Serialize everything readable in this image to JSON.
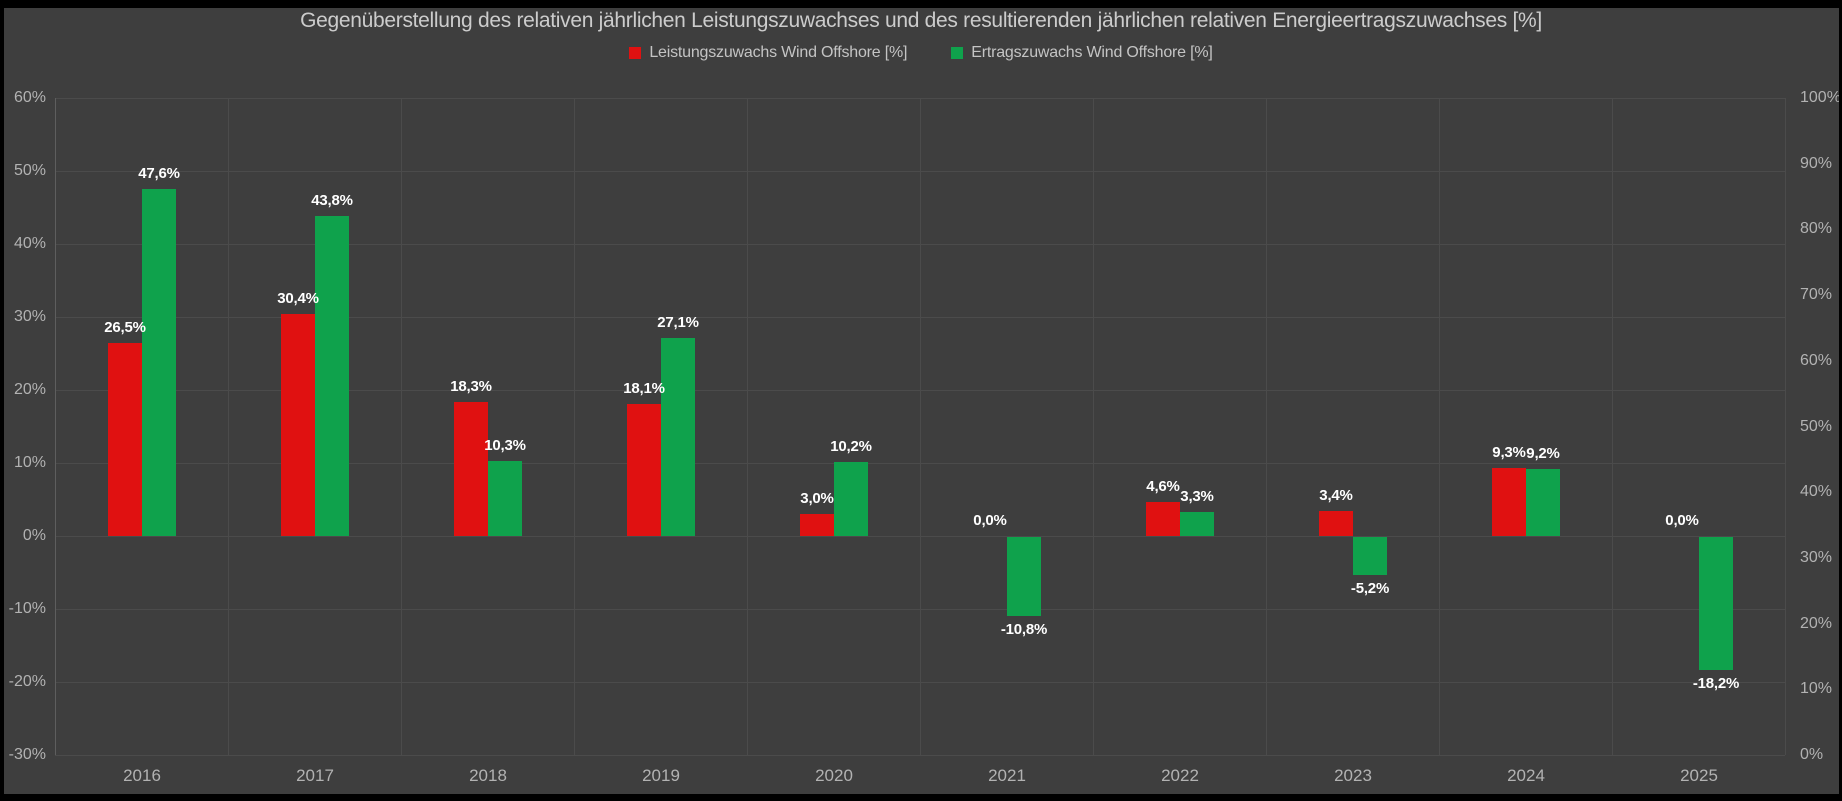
{
  "window": {
    "background": "#3e3e3e",
    "frame_color": "#000000"
  },
  "title": "Gegenüberstellung des relativen jährlichen Leistungszuwachses und des resultierenden jährlichen relativen Energieertragszuwachses [%]",
  "legend": {
    "items": [
      {
        "label": "Leistungszuwachs Wind Offshore [%]",
        "color": "#e01111"
      },
      {
        "label": "Ertragszuwachs Wind Offshore [%]",
        "color": "#0fa24c"
      }
    ]
  },
  "chart_data": {
    "type": "bar",
    "title": "Gegenüberstellung des relativen jährlichen Leistungszuwachses und des resultierenden jährlichen relativen Energieertragszuwachses [%]",
    "categories": [
      "2016",
      "2017",
      "2018",
      "2019",
      "2020",
      "2021",
      "2022",
      "2023",
      "2024",
      "2025"
    ],
    "series": [
      {
        "name": "Leistungszuwachs Wind Offshore [%]",
        "color": "#e01111",
        "axis": "left",
        "values": [
          26.5,
          30.4,
          18.3,
          18.1,
          3.0,
          0.0,
          4.6,
          3.4,
          9.3,
          0.0
        ],
        "labels": [
          "26,5%",
          "30,4%",
          "18,3%",
          "18,1%",
          "3,0%",
          "0,0%",
          "4,6%",
          "3,4%",
          "9,3%",
          "0,0%"
        ]
      },
      {
        "name": "Ertragszuwachs Wind Offshore [%]",
        "color": "#0fa24c",
        "axis": "left",
        "values": [
          47.6,
          43.8,
          10.3,
          27.1,
          10.2,
          -10.8,
          3.3,
          -5.2,
          9.2,
          -18.2
        ],
        "labels": [
          "47,6%",
          "43,8%",
          "10,3%",
          "27,1%",
          "10,2%",
          "-10,8%",
          "3,3%",
          "-5,2%",
          "9,2%",
          "-18,2%"
        ]
      }
    ],
    "left_axis": {
      "min": -30,
      "max": 60,
      "step": 10,
      "ticks": [
        "60%",
        "50%",
        "40%",
        "30%",
        "20%",
        "10%",
        "0%",
        "-10%",
        "-20%",
        "-30%"
      ]
    },
    "right_axis": {
      "min": 0,
      "max": 100,
      "step": 10,
      "ticks": [
        "100%",
        "90%",
        "80%",
        "70%",
        "60%",
        "50%",
        "40%",
        "30%",
        "20%",
        "10%",
        "0%"
      ]
    },
    "grid": true,
    "legend_position": "top",
    "data_label_color": "#ffffff",
    "grid_color": "#4b4b4b",
    "axis_text_color": "#b2b2b2"
  }
}
